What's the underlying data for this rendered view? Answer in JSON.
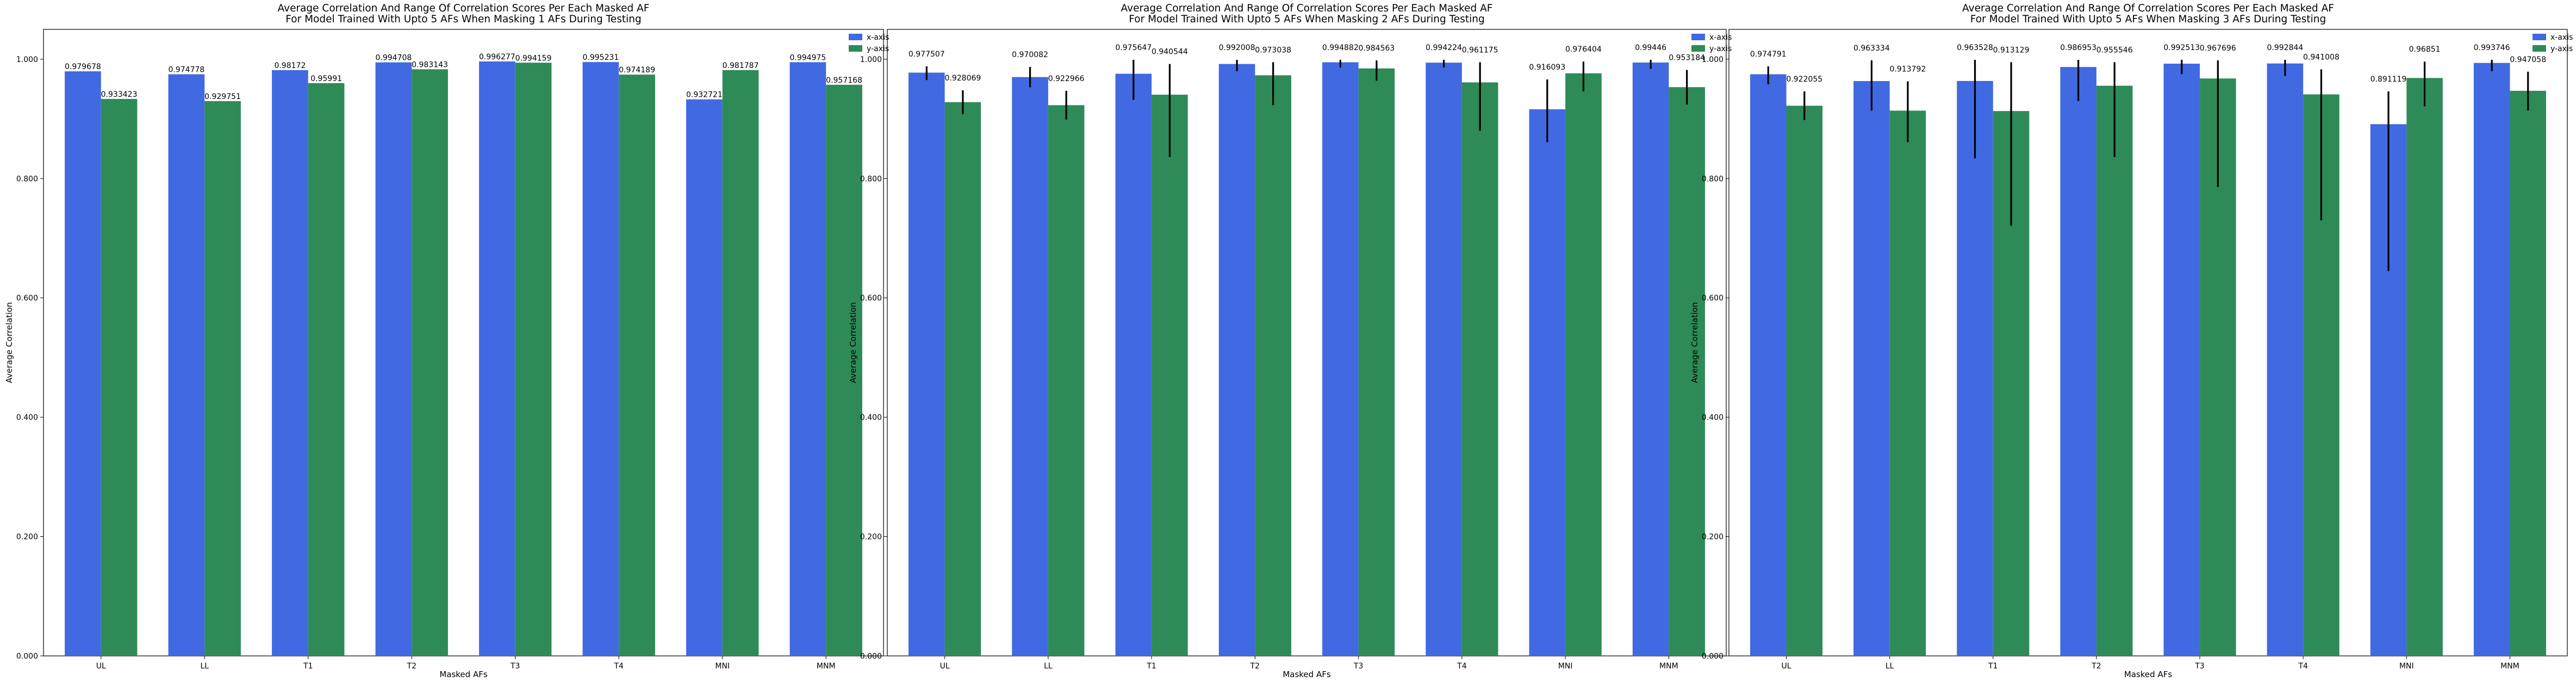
{
  "figure": {
    "legend_position": "top-right",
    "grid": false,
    "colors": {
      "x_axis": "#4169e1",
      "y_axis": "#2e8b57",
      "error_bar": "#000000"
    }
  },
  "chart_data": [
    {
      "type": "bar",
      "title": "Average Correlation And Range Of Correlation Scores Per Each Masked AF\nFor Model Trained With Upto 5 AFs When Masking 1 AFs During Testing",
      "xlabel": "Masked AFs",
      "ylabel": "Average Correlation",
      "ylim": [
        0,
        1.05
      ],
      "yticks": [
        "0.000",
        "0.200",
        "0.400",
        "0.600",
        "0.800",
        "1.000"
      ],
      "categories": [
        "UL",
        "LL",
        "T1",
        "T2",
        "T3",
        "T4",
        "MNI",
        "MNM"
      ],
      "series": [
        {
          "name": "x-axis",
          "values": [
            0.979678,
            0.974778,
            0.98172,
            0.994708,
            0.996277,
            0.995231,
            0.932721,
            0.994975
          ],
          "labels": [
            "0.979678",
            "0.974778",
            "0.98172",
            "0.994708",
            "0.996277",
            "0.995231",
            "0.932721",
            "0.994975"
          ],
          "error_ranges": null
        },
        {
          "name": "y-axis",
          "values": [
            0.933423,
            0.929751,
            0.95991,
            0.983143,
            0.994159,
            0.974189,
            0.981787,
            0.957168
          ],
          "labels": [
            "0.933423",
            "0.929751",
            "0.95991",
            "0.983143",
            "0.994159",
            "0.974189",
            "0.981787",
            "0.957168"
          ],
          "error_ranges": null
        }
      ]
    },
    {
      "type": "bar",
      "title": "Average Correlation And Range Of Correlation Scores Per Each Masked AF\nFor Model Trained With Upto 5 AFs When Masking 2 AFs During Testing",
      "xlabel": "Masked AFs",
      "ylabel": "Average Correlation",
      "ylim": [
        0,
        1.05
      ],
      "yticks": [
        "0.000",
        "0.200",
        "0.400",
        "0.600",
        "0.800",
        "1.000"
      ],
      "categories": [
        "UL",
        "LL",
        "T1",
        "T2",
        "T3",
        "T4",
        "MNI",
        "MNM"
      ],
      "series": [
        {
          "name": "x-axis",
          "values": [
            0.977507,
            0.970082,
            0.975647,
            0.992008,
            0.994882,
            0.994224,
            0.916093,
            0.99446
          ],
          "labels": [
            "0.977507",
            "0.970082",
            "0.975647",
            "0.992008",
            "0.994882",
            "0.994224",
            "0.916093",
            "0.99446"
          ],
          "error_ranges": [
            [
              0.965,
              0.988
            ],
            [
              0.953,
              0.987
            ],
            [
              0.932,
              0.999
            ],
            [
              0.98,
              0.999
            ],
            [
              0.986,
              0.999
            ],
            [
              0.986,
              0.999
            ],
            [
              0.861,
              0.966
            ],
            [
              0.984,
              0.999
            ]
          ]
        },
        {
          "name": "y-axis",
          "values": [
            0.928069,
            0.922966,
            0.940544,
            0.973038,
            0.984563,
            0.961175,
            0.976404,
            0.953184
          ],
          "labels": [
            "0.928069",
            "0.922966",
            "0.940544",
            "0.973038",
            "0.984563",
            "0.961175",
            "0.976404",
            "0.953184"
          ],
          "error_ranges": [
            [
              0.908,
              0.948
            ],
            [
              0.899,
              0.947
            ],
            [
              0.836,
              0.992
            ],
            [
              0.923,
              0.995
            ],
            [
              0.964,
              0.998
            ],
            [
              0.88,
              0.995
            ],
            [
              0.946,
              0.996
            ],
            [
              0.924,
              0.982
            ]
          ]
        }
      ]
    },
    {
      "type": "bar",
      "title": "Average Correlation And Range Of Correlation Scores Per Each Masked AF\nFor Model Trained With Upto 5 AFs When Masking 3 AFs During Testing",
      "xlabel": "Masked AFs",
      "ylabel": "Average Correlation",
      "ylim": [
        0,
        1.05
      ],
      "yticks": [
        "0.000",
        "0.200",
        "0.400",
        "0.600",
        "0.800",
        "1.000"
      ],
      "categories": [
        "UL",
        "LL",
        "T1",
        "T2",
        "T3",
        "T4",
        "MNI",
        "MNM"
      ],
      "series": [
        {
          "name": "x-axis",
          "values": [
            0.974791,
            0.963334,
            0.963528,
            0.986953,
            0.992513,
            0.992844,
            0.891119,
            0.993746
          ],
          "labels": [
            "0.974791",
            "0.963334",
            "0.963528",
            "0.986953",
            "0.992513",
            "0.992844",
            "0.891119",
            "0.993746"
          ],
          "error_ranges": [
            [
              0.958,
              0.988
            ],
            [
              0.914,
              0.998
            ],
            [
              0.834,
              0.999
            ],
            [
              0.93,
              0.999
            ],
            [
              0.975,
              0.999
            ],
            [
              0.972,
              0.999
            ],
            [
              0.645,
              0.946
            ],
            [
              0.98,
              0.999
            ]
          ]
        },
        {
          "name": "y-axis",
          "values": [
            0.922055,
            0.913792,
            0.913129,
            0.955546,
            0.967696,
            0.941008,
            0.96851,
            0.947058
          ],
          "labels": [
            "0.922055",
            "0.913792",
            "0.913129",
            "0.955546",
            "0.967696",
            "0.941008",
            "0.96851",
            "0.947058"
          ],
          "error_ranges": [
            [
              0.898,
              0.946
            ],
            [
              0.861,
              0.963
            ],
            [
              0.721,
              0.995
            ],
            [
              0.836,
              0.995
            ],
            [
              0.786,
              0.998
            ],
            [
              0.73,
              0.983
            ],
            [
              0.921,
              0.996
            ],
            [
              0.914,
              0.979
            ]
          ]
        }
      ]
    }
  ]
}
